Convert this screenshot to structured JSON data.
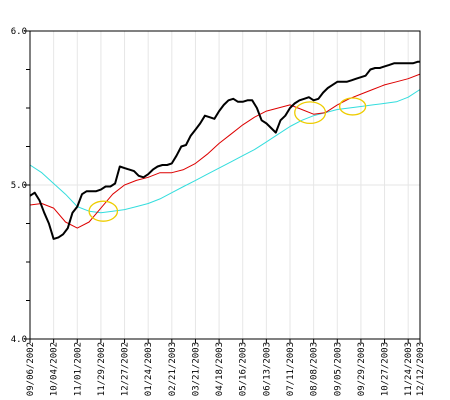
{
  "chart_data": {
    "type": "line",
    "title": "",
    "xlabel": "",
    "ylabel": "",
    "ylim": [
      4.0,
      6.0
    ],
    "y_ticks": [
      4.0,
      5.0,
      6.0
    ],
    "y_tick_labels": [
      "4.0",
      "5.0",
      "6.0"
    ],
    "x_range": [
      0,
      330
    ],
    "x_tick_labels": [
      {
        "label": "09/06/2002",
        "t": 0
      },
      {
        "label": "10/04/2002",
        "t": 20
      },
      {
        "label": "11/01/2002",
        "t": 40
      },
      {
        "label": "11/29/2002",
        "t": 60
      },
      {
        "label": "12/27/2002",
        "t": 80
      },
      {
        "label": "01/24/2003",
        "t": 100
      },
      {
        "label": "02/21/2003",
        "t": 120
      },
      {
        "label": "03/21/2003",
        "t": 140
      },
      {
        "label": "04/18/2003",
        "t": 160
      },
      {
        "label": "05/16/2003",
        "t": 180
      },
      {
        "label": "06/13/2003",
        "t": 200
      },
      {
        "label": "07/11/2003",
        "t": 220
      },
      {
        "label": "08/08/2003",
        "t": 240
      },
      {
        "label": "09/05/2003",
        "t": 260
      },
      {
        "label": "09/29/2003",
        "t": 280
      },
      {
        "label": "10/27/2003",
        "t": 300
      },
      {
        "label": "11/24/2003",
        "t": 320
      },
      {
        "label": "12/12/2003",
        "t": 330
      }
    ],
    "grid": true,
    "series": [
      {
        "color": "#000000",
        "x": [
          0,
          4,
          8,
          12,
          16,
          20,
          24,
          28,
          32,
          36,
          40,
          44,
          48,
          52,
          56,
          60,
          64,
          68,
          72,
          76,
          80,
          84,
          88,
          92,
          96,
          100,
          104,
          108,
          112,
          116,
          120,
          124,
          128,
          132,
          136,
          140,
          144,
          148,
          152,
          156,
          160,
          164,
          168,
          172,
          176,
          180,
          184,
          188,
          192,
          196,
          200,
          204,
          208,
          212,
          216,
          220,
          224,
          228,
          232,
          236,
          240,
          244,
          248,
          252,
          256,
          260,
          264,
          268,
          272,
          276,
          280,
          284,
          288,
          292,
          296,
          300,
          304,
          308,
          312,
          316,
          320,
          324,
          328,
          330
        ],
        "values": [
          4.93,
          4.95,
          4.9,
          4.82,
          4.75,
          4.65,
          4.66,
          4.68,
          4.72,
          4.82,
          4.86,
          4.94,
          4.96,
          4.96,
          4.96,
          4.97,
          4.99,
          4.99,
          5.01,
          5.12,
          5.11,
          5.1,
          5.09,
          5.06,
          5.05,
          5.07,
          5.1,
          5.12,
          5.13,
          5.13,
          5.14,
          5.19,
          5.25,
          5.26,
          5.32,
          5.36,
          5.4,
          5.45,
          5.44,
          5.43,
          5.48,
          5.52,
          5.55,
          5.56,
          5.54,
          5.54,
          5.55,
          5.55,
          5.5,
          5.42,
          5.4,
          5.37,
          5.34,
          5.42,
          5.45,
          5.5,
          5.53,
          5.55,
          5.56,
          5.57,
          5.55,
          5.56,
          5.6,
          5.63,
          5.65,
          5.67,
          5.67,
          5.67,
          5.68,
          5.69,
          5.7,
          5.71,
          5.75,
          5.76,
          5.76,
          5.77,
          5.78,
          5.79,
          5.79,
          5.79,
          5.79,
          5.79,
          5.8,
          5.8
        ]
      },
      {
        "color": "#dd0000",
        "x": [
          0,
          10,
          20,
          30,
          40,
          50,
          60,
          70,
          80,
          90,
          100,
          110,
          120,
          130,
          140,
          150,
          160,
          170,
          180,
          190,
          200,
          210,
          220,
          230,
          240,
          250,
          260,
          270,
          280,
          290,
          300,
          310,
          320,
          330
        ],
        "values": [
          4.87,
          4.88,
          4.85,
          4.76,
          4.72,
          4.76,
          4.85,
          4.94,
          5.0,
          5.03,
          5.05,
          5.08,
          5.08,
          5.1,
          5.14,
          5.2,
          5.27,
          5.33,
          5.39,
          5.44,
          5.48,
          5.5,
          5.52,
          5.49,
          5.46,
          5.47,
          5.52,
          5.56,
          5.59,
          5.62,
          5.65,
          5.67,
          5.69,
          5.72
        ]
      },
      {
        "color": "#33dddd",
        "x": [
          0,
          10,
          20,
          30,
          40,
          50,
          60,
          70,
          80,
          90,
          100,
          110,
          120,
          130,
          140,
          150,
          160,
          170,
          180,
          190,
          200,
          210,
          220,
          230,
          240,
          250,
          260,
          270,
          280,
          290,
          300,
          310,
          320,
          330
        ],
        "values": [
          5.13,
          5.08,
          5.01,
          4.94,
          4.86,
          4.83,
          4.82,
          4.83,
          4.84,
          4.86,
          4.88,
          4.91,
          4.95,
          4.99,
          5.03,
          5.07,
          5.11,
          5.15,
          5.19,
          5.23,
          5.28,
          5.33,
          5.38,
          5.42,
          5.45,
          5.47,
          5.49,
          5.5,
          5.51,
          5.52,
          5.53,
          5.54,
          5.57,
          5.62
        ]
      }
    ],
    "annotations": [
      {
        "shape": "ellipse",
        "color": "#eecc00",
        "t": 62,
        "y": 4.83,
        "rt": 12,
        "ry": 0.065
      },
      {
        "shape": "ellipse",
        "color": "#eecc00",
        "t": 237,
        "y": 5.47,
        "rt": 13,
        "ry": 0.07
      },
      {
        "shape": "ellipse",
        "color": "#eecc00",
        "t": 273,
        "y": 5.51,
        "rt": 11,
        "ry": 0.055
      }
    ]
  }
}
